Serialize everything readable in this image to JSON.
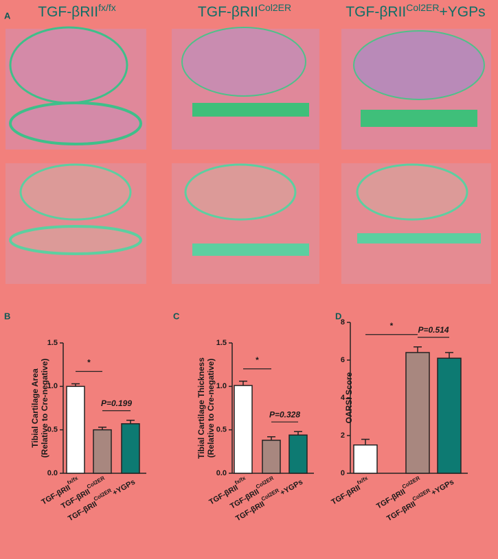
{
  "panel_a": {
    "label": "A",
    "headers": [
      {
        "base": "TGF-βRII",
        "sup": "fx/fx"
      },
      {
        "base": "TGF-βRII",
        "sup": "Col2ER"
      },
      {
        "base": "TGF-βRII",
        "sup": "Col2ER",
        "after": "+YGPs"
      }
    ]
  },
  "chart_data": [
    {
      "type": "bar",
      "label": "B",
      "ylabel": [
        "Tibial Cartilage Area",
        "(Relative to Cre-negative)"
      ],
      "categories": [
        {
          "base": "TGF-βRII",
          "sup": "fx/fx"
        },
        {
          "base": "TGF-βRII",
          "sup": "Col2ER"
        },
        {
          "base": "TGF-βRII",
          "sup": "Col2ER",
          "after": "+YGPs"
        }
      ],
      "values": [
        1.0,
        0.5,
        0.57
      ],
      "errors": [
        0.03,
        0.03,
        0.04
      ],
      "colors": [
        "#ffffff",
        "#a8877f",
        "#0d7a72"
      ],
      "ylim": [
        0,
        1.5
      ],
      "yticks": [
        {
          "value": 0,
          "label": "0.0"
        },
        {
          "value": 0.5,
          "label": "0.5"
        },
        {
          "value": 1,
          "label": "1.0"
        },
        {
          "value": 1.5,
          "label": "1.5"
        }
      ],
      "annotations": [
        "*",
        "P=0.199"
      ]
    },
    {
      "type": "bar",
      "label": "C",
      "ylabel": [
        "Tibial Cartilage Thickness",
        "(Relative to Cre-negative)"
      ],
      "categories": [
        {
          "base": "TGF-βRII",
          "sup": "fx/fx"
        },
        {
          "base": "TGF-βRII",
          "sup": "Col2ER"
        },
        {
          "base": "TGF-βRII",
          "sup": "Col2ER",
          "after": "+YGPs"
        }
      ],
      "values": [
        1.01,
        0.38,
        0.44
      ],
      "errors": [
        0.05,
        0.04,
        0.04
      ],
      "colors": [
        "#ffffff",
        "#a8877f",
        "#0d7a72"
      ],
      "ylim": [
        0,
        1.5
      ],
      "yticks": [
        {
          "value": 0,
          "label": "0.0"
        },
        {
          "value": 0.5,
          "label": "0.5"
        },
        {
          "value": 1,
          "label": "1.0"
        },
        {
          "value": 1.5,
          "label": "1.5"
        }
      ],
      "annotations": [
        "*",
        "P=0.328"
      ]
    },
    {
      "type": "bar",
      "label": "D",
      "ylabel": [
        "OARSI Score"
      ],
      "categories": [
        {
          "base": "TGF-βRII",
          "sup": "fx/fx"
        },
        {
          "base": "TGF-βRII",
          "sup": "Col2ER"
        },
        {
          "base": "TGF-βRII",
          "sup": "Col2ER",
          "after": "+YGPs"
        }
      ],
      "values": [
        1.5,
        6.4,
        6.1
      ],
      "errors": [
        0.3,
        0.3,
        0.3
      ],
      "colors": [
        "#ffffff",
        "#a8877f",
        "#0d7a72"
      ],
      "ylim": [
        0,
        8
      ],
      "yticks": [
        0,
        2,
        4,
        6,
        8
      ],
      "annotations": [
        "*",
        "P=0.514"
      ]
    }
  ]
}
